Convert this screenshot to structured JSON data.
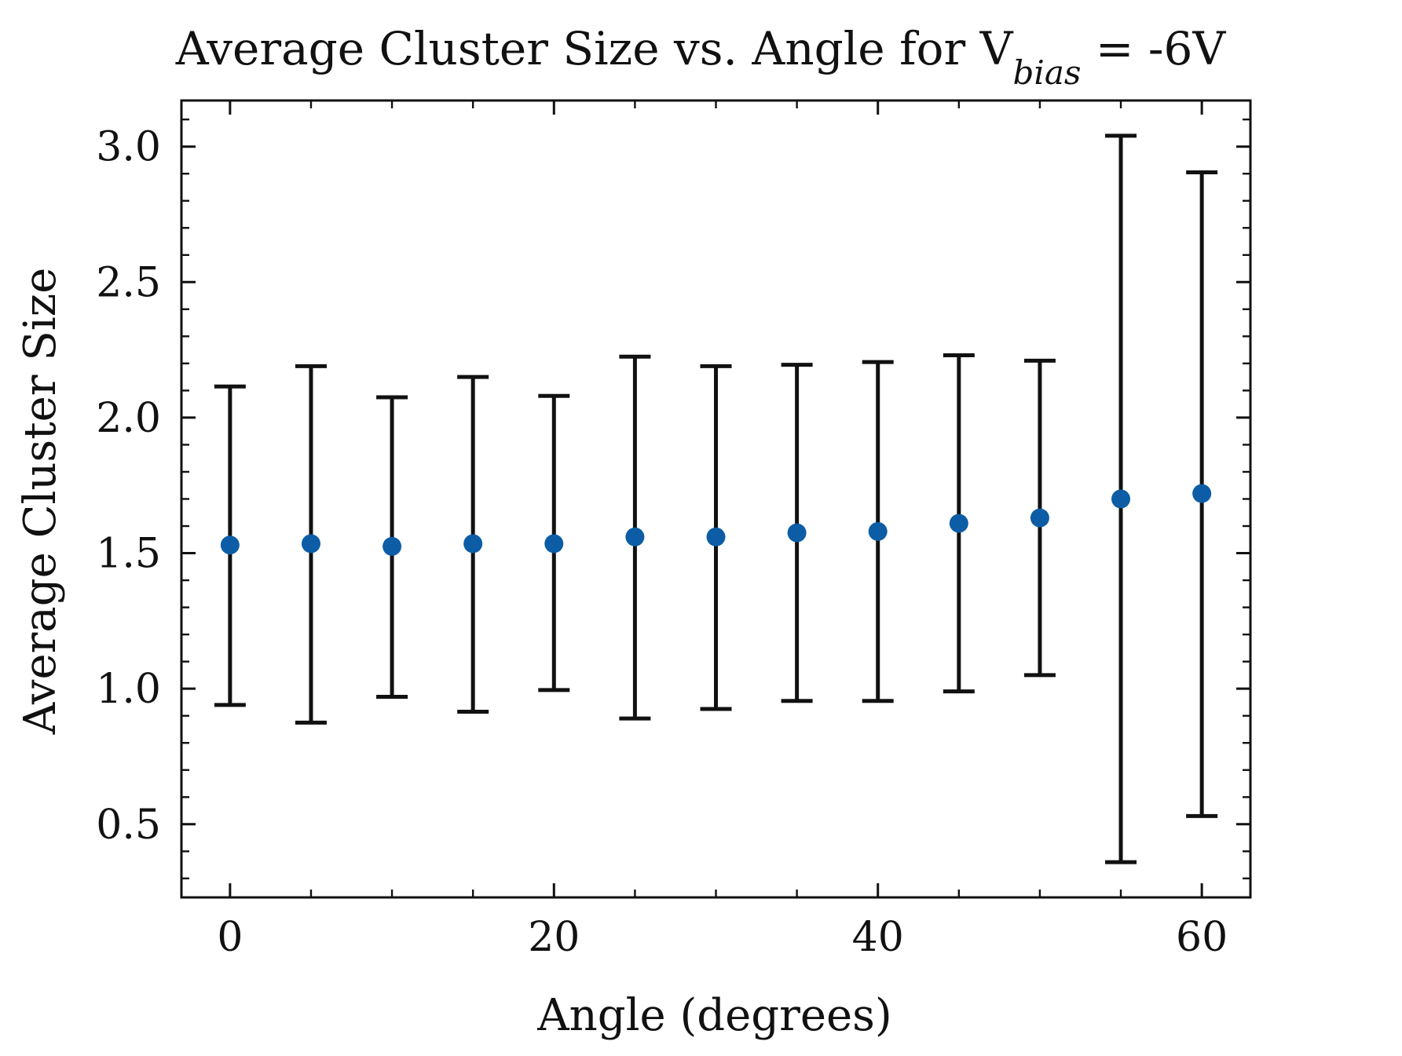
{
  "chart_data": {
    "type": "scatter",
    "title": "Average Cluster Size vs. Angle for V",
    "title_subscript": "bias",
    "title_suffix": " = -6V",
    "xlabel": "Angle (degrees)",
    "ylabel": "Average Cluster Size",
    "xlim": [
      -3,
      63
    ],
    "ylim": [
      0.23,
      3.17
    ],
    "x_ticks": [
      0,
      20,
      40,
      60
    ],
    "x_minor_ticks": [
      5,
      10,
      15,
      25,
      30,
      35,
      45,
      50,
      55
    ],
    "y_ticks": [
      0.5,
      1.0,
      1.5,
      2.0,
      2.5,
      3.0
    ],
    "y_minor_ticks": [
      0.3,
      0.4,
      0.6,
      0.7,
      0.8,
      0.9,
      1.1,
      1.2,
      1.3,
      1.4,
      1.6,
      1.7,
      1.8,
      1.9,
      2.1,
      2.2,
      2.3,
      2.4,
      2.6,
      2.7,
      2.8,
      2.9,
      3.1
    ],
    "x_tick_labels": [
      "0",
      "20",
      "40",
      "60"
    ],
    "y_tick_labels": [
      "0.5",
      "1.0",
      "1.5",
      "2.0",
      "2.5",
      "3.0"
    ],
    "grid": false,
    "series": [
      {
        "x": [
          0,
          5,
          10,
          15,
          20,
          25,
          30,
          35,
          40,
          45,
          50,
          55,
          60
        ],
        "y": [
          1.53,
          1.535,
          1.525,
          1.535,
          1.535,
          1.56,
          1.56,
          1.575,
          1.58,
          1.61,
          1.63,
          1.7,
          1.72
        ],
        "yerr_lower": [
          0.94,
          0.875,
          0.97,
          0.915,
          0.995,
          0.89,
          0.925,
          0.955,
          0.955,
          0.99,
          1.05,
          0.36,
          0.53
        ],
        "yerr_upper": [
          2.115,
          2.19,
          2.075,
          2.15,
          2.08,
          2.225,
          2.19,
          2.195,
          2.205,
          2.23,
          2.21,
          3.04,
          2.905
        ],
        "color": "#0C5DA5",
        "errorbar_color": "#111111"
      }
    ]
  }
}
